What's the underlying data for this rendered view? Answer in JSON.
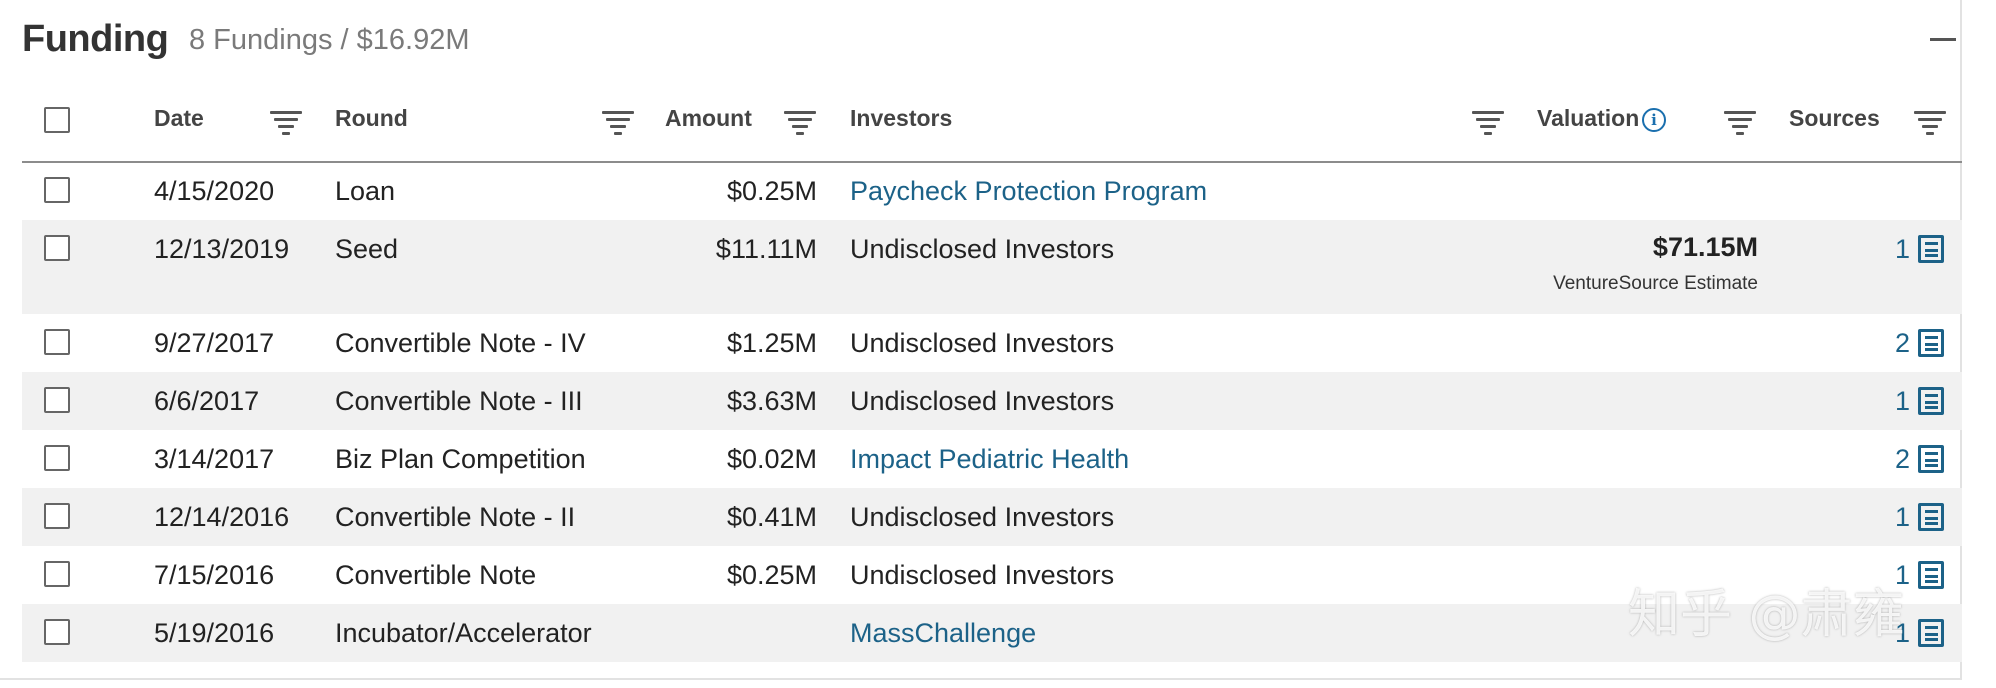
{
  "header": {
    "title": "Funding",
    "summary": "8 Fundings / $16.92M"
  },
  "columns": {
    "date": "Date",
    "round": "Round",
    "amount": "Amount",
    "investors": "Investors",
    "valuation": "Valuation",
    "sources": "Sources"
  },
  "rows": [
    {
      "date": "4/15/2020",
      "round": "Loan",
      "amount": "$0.25M",
      "investors": "Paycheck Protection Program",
      "investor_link": true,
      "valuation": "",
      "valuation_note": "",
      "sources": ""
    },
    {
      "date": "12/13/2019",
      "round": "Seed",
      "amount": "$11.11M",
      "investors": "Undisclosed Investors",
      "investor_link": false,
      "valuation": "$71.15M",
      "valuation_note": "VentureSource Estimate",
      "sources": "1"
    },
    {
      "date": "9/27/2017",
      "round": "Convertible Note - IV",
      "amount": "$1.25M",
      "investors": "Undisclosed Investors",
      "investor_link": false,
      "valuation": "",
      "valuation_note": "",
      "sources": "2"
    },
    {
      "date": "6/6/2017",
      "round": "Convertible Note - III",
      "amount": "$3.63M",
      "investors": "Undisclosed Investors",
      "investor_link": false,
      "valuation": "",
      "valuation_note": "",
      "sources": "1"
    },
    {
      "date": "3/14/2017",
      "round": "Biz Plan Competition",
      "amount": "$0.02M",
      "investors": "Impact Pediatric Health",
      "investor_link": true,
      "valuation": "",
      "valuation_note": "",
      "sources": "2"
    },
    {
      "date": "12/14/2016",
      "round": "Convertible Note - II",
      "amount": "$0.41M",
      "investors": "Undisclosed Investors",
      "investor_link": false,
      "valuation": "",
      "valuation_note": "",
      "sources": "1"
    },
    {
      "date": "7/15/2016",
      "round": "Convertible Note",
      "amount": "$0.25M",
      "investors": "Undisclosed Investors",
      "investor_link": false,
      "valuation": "",
      "valuation_note": "",
      "sources": "1"
    },
    {
      "date": "5/19/2016",
      "round": "Incubator/Accelerator",
      "amount": "",
      "investors": "MassChallenge",
      "investor_link": true,
      "valuation": "",
      "valuation_note": "",
      "sources": "1"
    }
  ],
  "watermark": "知乎 @肃雍",
  "colors": {
    "link": "#1c6288",
    "row_alt": "#f1f1f1",
    "info_icon": "#1a6fae"
  }
}
